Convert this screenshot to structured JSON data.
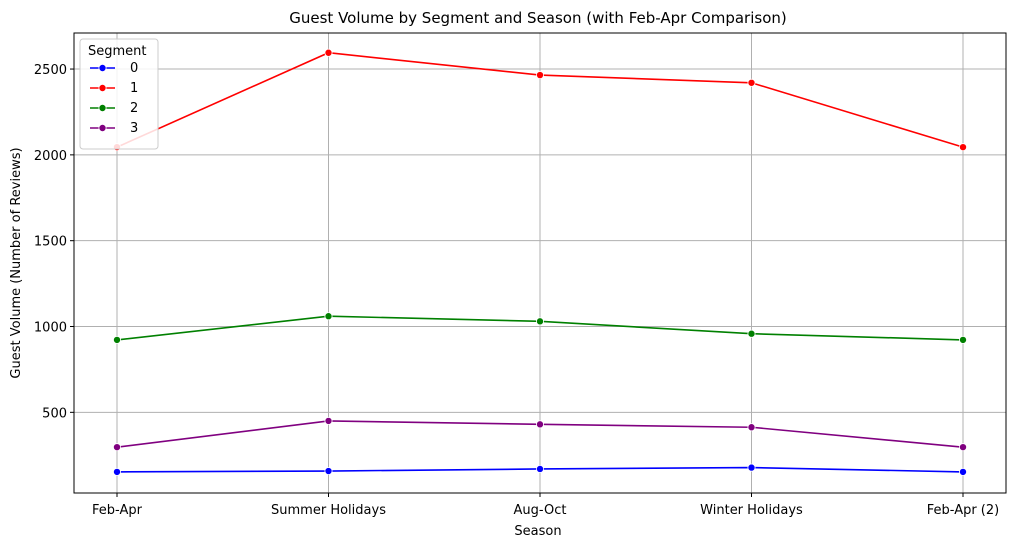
{
  "chart_data": {
    "type": "line",
    "title": "Guest Volume by Segment and Season (with Feb-Apr Comparison)",
    "xlabel": "Season",
    "ylabel": "Guest Volume (Number of Reviews)",
    "categories": [
      "Feb-Apr",
      "Summer Holidays",
      "Aug-Oct",
      "Winter Holidays",
      "Feb-Apr (2)"
    ],
    "ylim": [
      30,
      2710
    ],
    "yticks": [
      500,
      1000,
      1500,
      2000,
      2500
    ],
    "grid": true,
    "legend": {
      "title": "Segment",
      "placement": "top-left"
    },
    "series": [
      {
        "name": "0",
        "color": "#0000ff",
        "values": [
          153,
          158,
          170,
          178,
          153
        ]
      },
      {
        "name": "1",
        "color": "#ff0000",
        "values": [
          2045,
          2595,
          2465,
          2420,
          2045
        ]
      },
      {
        "name": "2",
        "color": "#008000",
        "values": [
          922,
          1060,
          1030,
          958,
          922
        ]
      },
      {
        "name": "3",
        "color": "#800080",
        "values": [
          297,
          450,
          430,
          413,
          297
        ]
      }
    ]
  }
}
